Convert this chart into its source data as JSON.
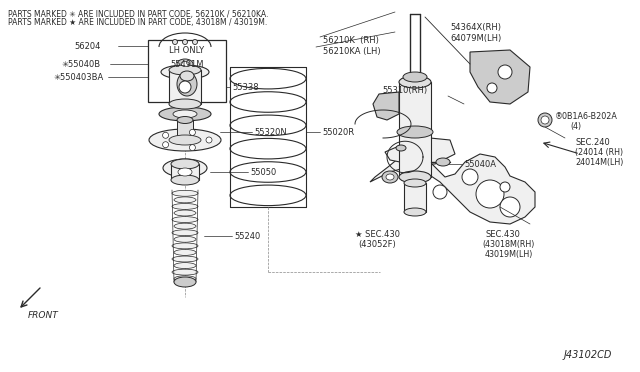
{
  "bg_color": "#ffffff",
  "line_color": "#2a2a2a",
  "fig_width": 6.4,
  "fig_height": 3.72,
  "diagram_code": "J43102CD",
  "header_line1": "PARTS MARKED ✳ ARE INCLUDED IN PART CODE, 56210K / 56210KA.",
  "header_line2": "PARTS MARKED ★ ARE INCLUDED IN PART CODE, 43018M / 43019M.",
  "front_label": "FRONT"
}
